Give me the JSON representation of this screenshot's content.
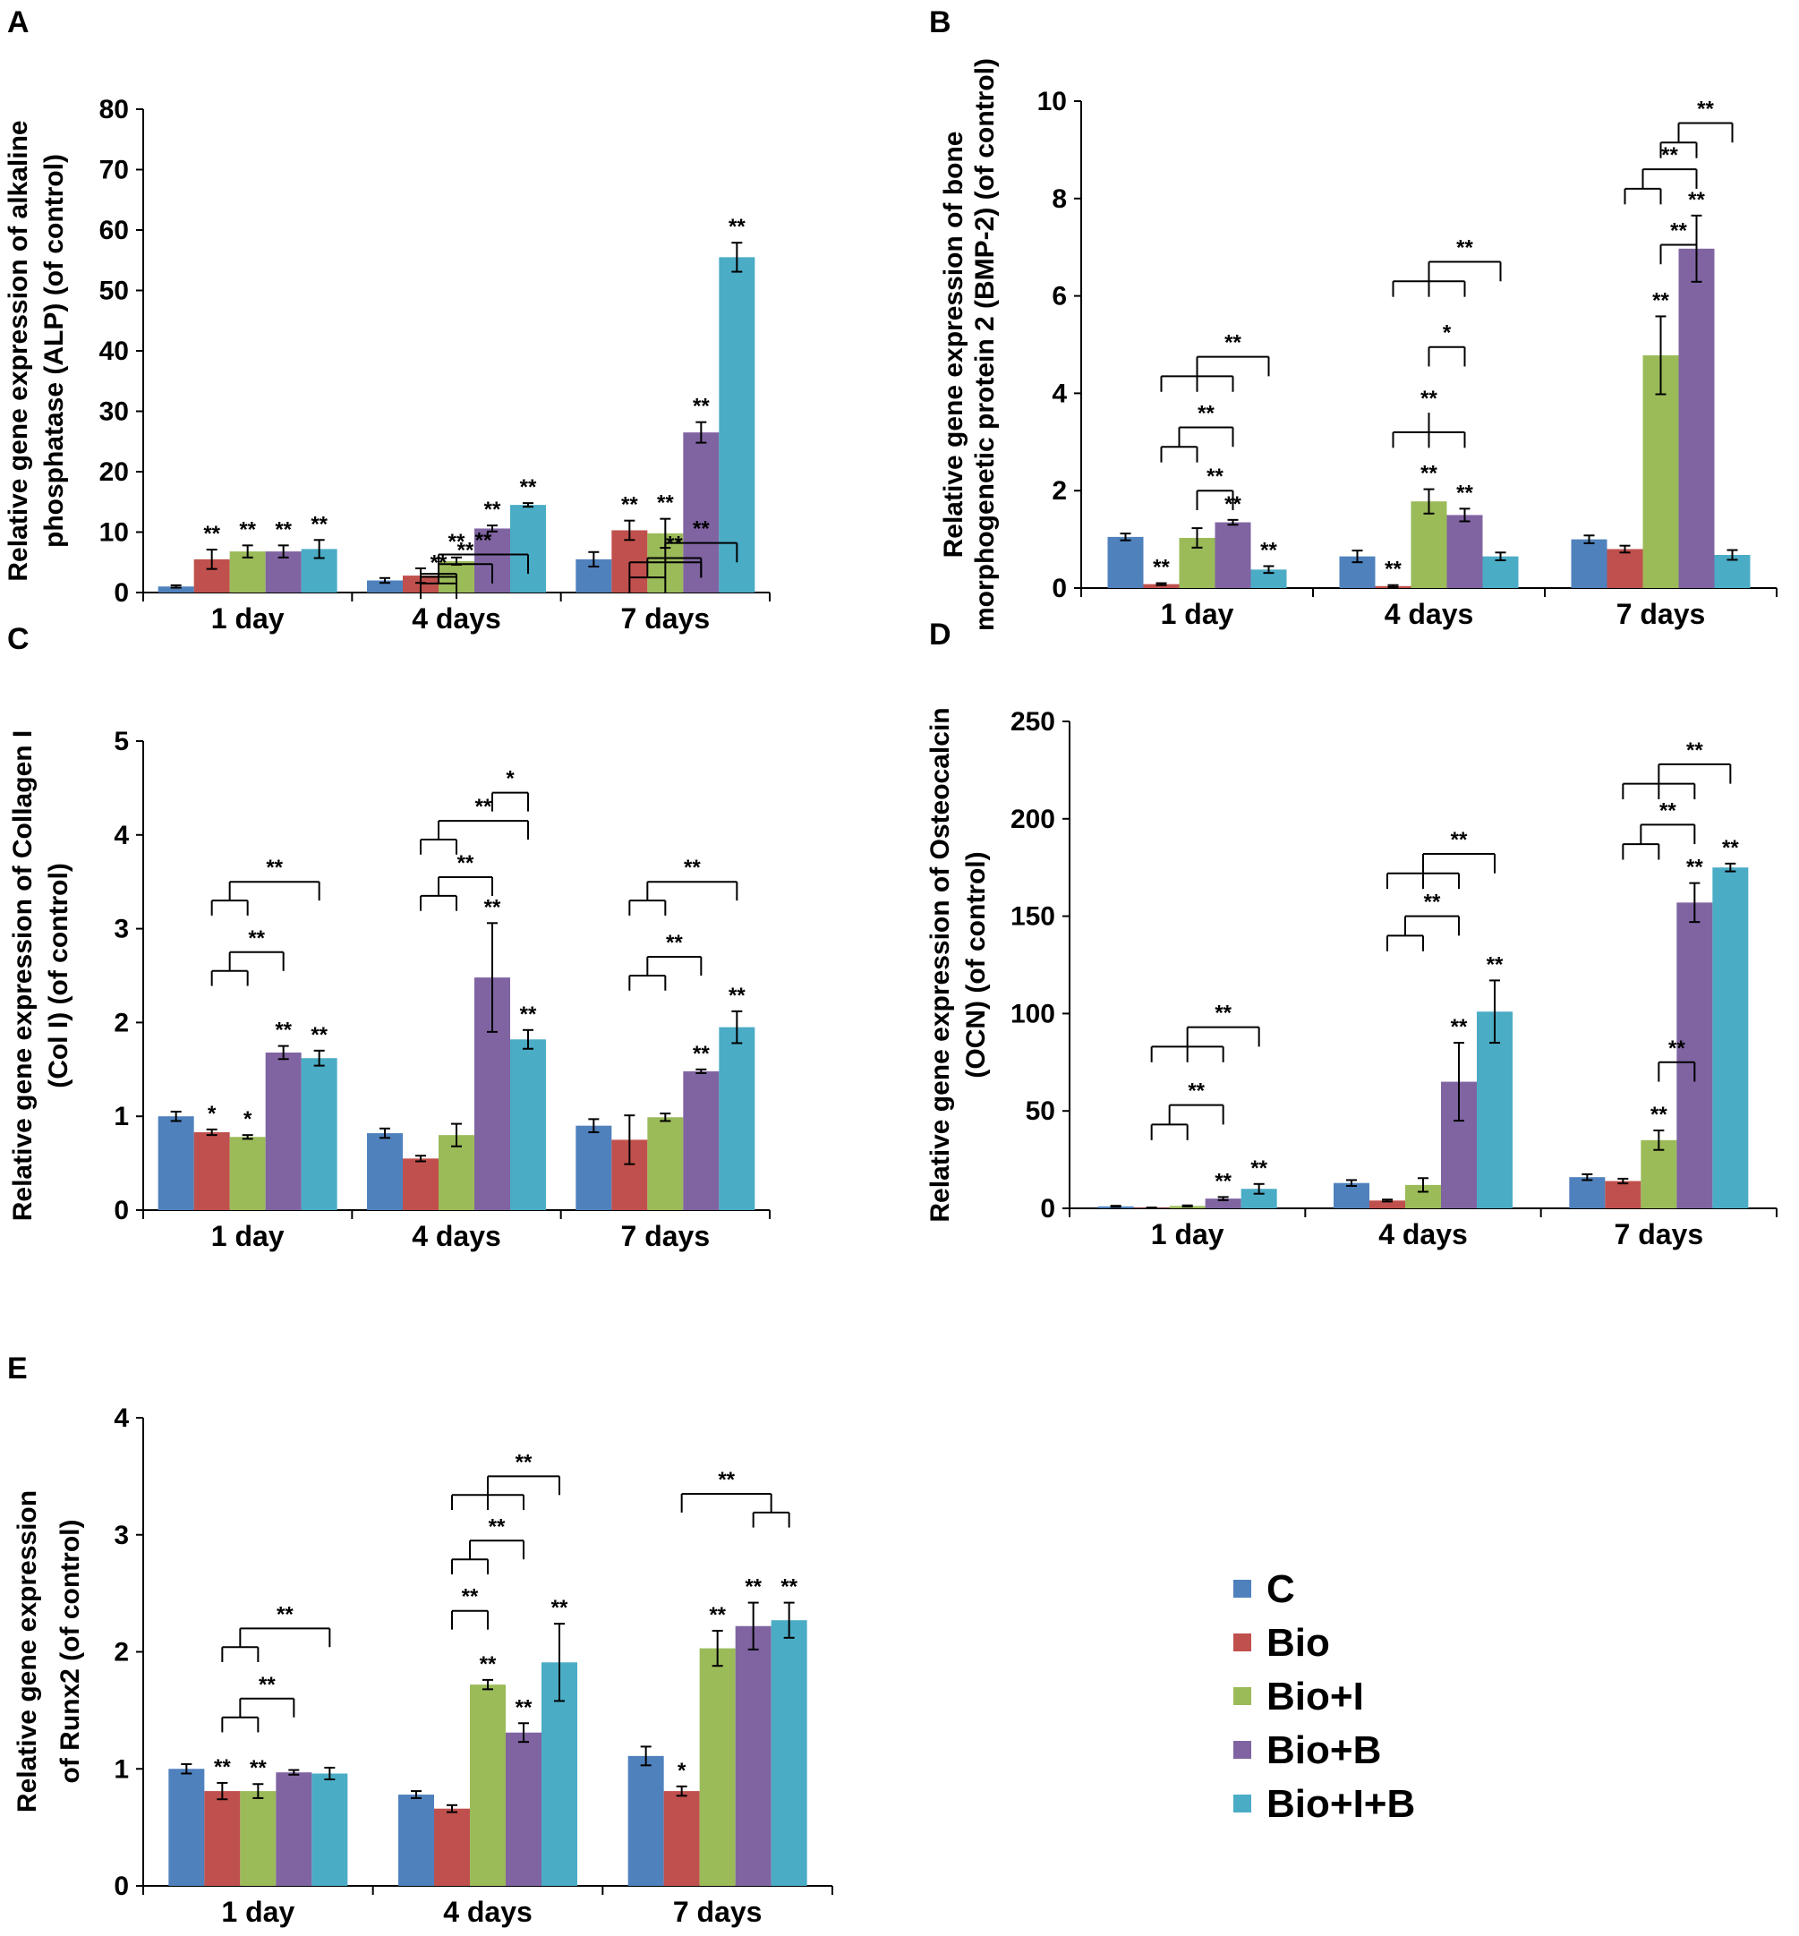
{
  "legend": {
    "items": [
      {
        "label": "C",
        "color": "#4F81BD"
      },
      {
        "label": "Bio",
        "color": "#C0504D"
      },
      {
        "label": "Bio+I",
        "color": "#9BBB59"
      },
      {
        "label": "Bio+B",
        "color": "#8064A2"
      },
      {
        "label": "Bio+I+B",
        "color": "#4BACC6"
      }
    ]
  },
  "chart_data": [
    {
      "panel": "A",
      "type": "bar",
      "ylabel": "Relative gene expression of alkaline phosphatase (ALP) (of control)",
      "ylabel_lines": [
        "Relative gene expression of alkaline",
        "phosphatase (ALP) (of control)"
      ],
      "ylim": [
        0,
        80
      ],
      "yticks": [
        "0",
        "10",
        "20",
        "30",
        "40",
        "50",
        "60",
        "70",
        "80"
      ],
      "categories": [
        "1 day",
        "4 days",
        "7 days"
      ],
      "series": [
        {
          "name": "C",
          "values": [
            1,
            2,
            5.5
          ],
          "errors": [
            0.2,
            0.4,
            1.2
          ],
          "stars": [
            "",
            "",
            ""
          ]
        },
        {
          "name": "Bio",
          "values": [
            5.5,
            2.8,
            10.3
          ],
          "errors": [
            1.6,
            1.2,
            1.6
          ],
          "stars": [
            "**",
            "",
            "**"
          ]
        },
        {
          "name": "Bio+I",
          "values": [
            6.8,
            5.2,
            9.8
          ],
          "errors": [
            1.0,
            0.6,
            2.4
          ],
          "stars": [
            "**",
            "**",
            "**"
          ]
        },
        {
          "name": "Bio+B",
          "values": [
            6.8,
            10.6,
            26.5
          ],
          "errors": [
            1.0,
            0.5,
            1.7
          ],
          "stars": [
            "**",
            "**",
            "**"
          ]
        },
        {
          "name": "Bio+I+B",
          "values": [
            7.2,
            14.5,
            55.5
          ],
          "errors": [
            1.5,
            0.3,
            2.4
          ],
          "stars": [
            "**",
            "**",
            "**"
          ]
        }
      ],
      "brackets": [
        {
          "cat": 1,
          "from": [
            1,
            2
          ],
          "to": 3,
          "level": 4.7,
          "label": "**"
        },
        {
          "cat": 1,
          "from": [
            1,
            2
          ],
          "to": 4,
          "level": 6.3,
          "label": "**"
        },
        {
          "cat": 2,
          "from": [
            1,
            2
          ],
          "to": 3,
          "level": 5.7,
          "label": "**"
        },
        {
          "cat": 2,
          "from": [
            1,
            2,
            3
          ],
          "to": 4,
          "level": 8.2,
          "label": "**"
        },
        {
          "cat": 1,
          "from": [
            1
          ],
          "to": 2,
          "level": 2.6,
          "label": "**"
        }
      ]
    },
    {
      "panel": "B",
      "type": "bar",
      "ylabel": "Relative gene expression of bone morphogenetic protein 2 (BMP-2) (of control)",
      "ylabel_lines": [
        "Relative gene expression of bone",
        "morphogenetic protein 2 (BMP-2) (of control)"
      ],
      "ylim": [
        0,
        10
      ],
      "yticks": [
        "0",
        "2",
        "4",
        "6",
        "8",
        "10"
      ],
      "categories": [
        "1 day",
        "4 days",
        "7 days"
      ],
      "series": [
        {
          "name": "C",
          "values": [
            1.05,
            0.65,
            1.0
          ],
          "errors": [
            0.07,
            0.12,
            0.08
          ],
          "stars": [
            "",
            "",
            ""
          ]
        },
        {
          "name": "Bio",
          "values": [
            0.08,
            0.04,
            0.8
          ],
          "errors": [
            0.02,
            0.02,
            0.07
          ],
          "stars": [
            "**",
            "**",
            ""
          ]
        },
        {
          "name": "Bio+I",
          "values": [
            1.03,
            1.78,
            4.78
          ],
          "errors": [
            0.2,
            0.25,
            0.8
          ],
          "stars": [
            "",
            "**",
            "**"
          ]
        },
        {
          "name": "Bio+B",
          "values": [
            1.35,
            1.5,
            6.97
          ],
          "errors": [
            0.05,
            0.13,
            0.68
          ],
          "stars": [
            "**",
            "**",
            "**"
          ]
        },
        {
          "name": "Bio+I+B",
          "values": [
            0.38,
            0.65,
            0.68
          ],
          "errors": [
            0.07,
            0.08,
            0.1
          ],
          "stars": [
            "**",
            "",
            ""
          ]
        }
      ],
      "brackets": [
        {
          "cat": 0,
          "from": [
            2
          ],
          "to": 3,
          "level": 2.0,
          "label": "**"
        },
        {
          "cat": 0,
          "from": [
            1,
            2
          ],
          "to": 3,
          "level": 3.3,
          "label": "**"
        },
        {
          "cat": 0,
          "from": [
            1,
            2,
            3
          ],
          "to": 4,
          "level": 4.75,
          "label": "**"
        },
        {
          "cat": 1,
          "from": [
            2
          ],
          "to": 3,
          "level": 4.95,
          "label": "*"
        },
        {
          "cat": 1,
          "from": [
            1,
            2,
            3
          ],
          "to": 4,
          "level": 6.7,
          "label": "**"
        },
        {
          "cat": 1,
          "from": [
            1,
            2,
            3
          ],
          "to": 2,
          "level": 3.6,
          "label": "**"
        },
        {
          "cat": 2,
          "from": [
            2
          ],
          "to": 3,
          "level": 7.05,
          "label": "**"
        },
        {
          "cat": 2,
          "from": [
            1,
            2
          ],
          "to": 3,
          "level": 8.6,
          "label": "**"
        },
        {
          "cat": 2,
          "from": [
            2,
            3
          ],
          "to": 4,
          "level": 9.55,
          "label": "**"
        }
      ]
    },
    {
      "panel": "C",
      "type": "bar",
      "ylabel": "Relative gene expression of Collagen I (Col I) (of control)",
      "ylabel_lines": [
        "Relative gene expression of Collagen I",
        "(Col I) (of control)"
      ],
      "ylim": [
        0,
        5
      ],
      "yticks": [
        "0",
        "1",
        "2",
        "3",
        "4",
        "5"
      ],
      "categories": [
        "1 day",
        "4 days",
        "7 days"
      ],
      "series": [
        {
          "name": "C",
          "values": [
            1.0,
            0.82,
            0.9
          ],
          "errors": [
            0.05,
            0.05,
            0.07
          ],
          "stars": [
            "",
            "",
            ""
          ]
        },
        {
          "name": "Bio",
          "values": [
            0.83,
            0.55,
            0.75
          ],
          "errors": [
            0.03,
            0.03,
            0.26
          ],
          "stars": [
            "*",
            "",
            ""
          ]
        },
        {
          "name": "Bio+I",
          "values": [
            0.78,
            0.8,
            0.99
          ],
          "errors": [
            0.02,
            0.12,
            0.04
          ],
          "stars": [
            "*",
            "",
            ""
          ]
        },
        {
          "name": "Bio+B",
          "values": [
            1.68,
            2.48,
            1.48
          ],
          "errors": [
            0.07,
            0.58,
            0.02
          ],
          "stars": [
            "**",
            "**",
            "**"
          ]
        },
        {
          "name": "Bio+I+B",
          "values": [
            1.62,
            1.82,
            1.95
          ],
          "errors": [
            0.08,
            0.1,
            0.17
          ],
          "stars": [
            "**",
            "**",
            "**"
          ]
        }
      ],
      "brackets": [
        {
          "cat": 0,
          "from": [
            1,
            2
          ],
          "to": 3,
          "level": 2.75,
          "label": "**"
        },
        {
          "cat": 0,
          "from": [
            1,
            2
          ],
          "to": 4,
          "level": 3.5,
          "label": "**"
        },
        {
          "cat": 1,
          "from": [
            1,
            2
          ],
          "to": 3,
          "level": 3.55,
          "label": "**"
        },
        {
          "cat": 1,
          "from": [
            1,
            2
          ],
          "to": 4,
          "level": 4.15,
          "label": "**"
        },
        {
          "cat": 1,
          "from": [
            3
          ],
          "to": 4,
          "level": 4.45,
          "label": "*"
        },
        {
          "cat": 2,
          "from": [
            1,
            2
          ],
          "to": 3,
          "level": 2.7,
          "label": "**"
        },
        {
          "cat": 2,
          "from": [
            1,
            2
          ],
          "to": 4,
          "level": 3.5,
          "label": "**"
        }
      ]
    },
    {
      "panel": "D",
      "type": "bar",
      "ylabel": "Relative gene expression of Osteocalcin (OCN) (of control)",
      "ylabel_lines": [
        "Relative gene expression of Osteocalcin",
        "(OCN) (of control)"
      ],
      "ylim": [
        0,
        250
      ],
      "yticks": [
        "0",
        "50",
        "100",
        "150",
        "200",
        "250"
      ],
      "categories": [
        "1 day",
        "4 days",
        "7 days"
      ],
      "series": [
        {
          "name": "C",
          "values": [
            1,
            13,
            16
          ],
          "errors": [
            0.3,
            1.5,
            1.5
          ],
          "stars": [
            "",
            "",
            ""
          ]
        },
        {
          "name": "Bio",
          "values": [
            0.3,
            4,
            14
          ],
          "errors": [
            0.1,
            0.5,
            1.2
          ],
          "stars": [
            "",
            "",
            ""
          ]
        },
        {
          "name": "Bio+I",
          "values": [
            1.2,
            12,
            35
          ],
          "errors": [
            0.3,
            3.5,
            5
          ],
          "stars": [
            "",
            "",
            "**"
          ]
        },
        {
          "name": "Bio+B",
          "values": [
            5,
            65,
            157
          ],
          "errors": [
            0.8,
            20,
            10
          ],
          "stars": [
            "**",
            "**",
            "**"
          ]
        },
        {
          "name": "Bio+I+B",
          "values": [
            10,
            101,
            175
          ],
          "errors": [
            2.5,
            16,
            2
          ],
          "stars": [
            "**",
            "**",
            "**"
          ]
        }
      ],
      "brackets": [
        {
          "cat": 0,
          "from": [
            1,
            2
          ],
          "to": 3,
          "level": 53,
          "label": "**"
        },
        {
          "cat": 0,
          "from": [
            1,
            2,
            3
          ],
          "to": 4,
          "level": 93,
          "label": "**"
        },
        {
          "cat": 1,
          "from": [
            1,
            2
          ],
          "to": 3,
          "level": 150,
          "label": "**"
        },
        {
          "cat": 1,
          "from": [
            1,
            2,
            3
          ],
          "to": 4,
          "level": 182,
          "label": "**"
        },
        {
          "cat": 2,
          "from": [
            2
          ],
          "to": 3,
          "level": 75,
          "label": "**"
        },
        {
          "cat": 2,
          "from": [
            1,
            2
          ],
          "to": 3,
          "level": 197,
          "label": "**"
        },
        {
          "cat": 2,
          "from": [
            1,
            2,
            3
          ],
          "to": 4,
          "level": 228,
          "label": "**"
        }
      ]
    },
    {
      "panel": "E",
      "type": "bar",
      "ylabel": "Relative gene expression of Runx2 (of control)",
      "ylabel_lines": [
        "Relative gene expression",
        "of Runx2 (of control)"
      ],
      "ylim": [
        0,
        4
      ],
      "yticks": [
        "0",
        "1",
        "2",
        "3",
        "4"
      ],
      "categories": [
        "1 day",
        "4 days",
        "7 days"
      ],
      "series": [
        {
          "name": "C",
          "values": [
            1.0,
            0.78,
            1.11
          ],
          "errors": [
            0.04,
            0.03,
            0.08
          ],
          "stars": [
            "",
            "",
            ""
          ]
        },
        {
          "name": "Bio",
          "values": [
            0.81,
            0.66,
            0.81
          ],
          "errors": [
            0.07,
            0.03,
            0.04
          ],
          "stars": [
            "**",
            "",
            "*"
          ]
        },
        {
          "name": "Bio+I",
          "values": [
            0.81,
            1.72,
            2.03
          ],
          "errors": [
            0.06,
            0.04,
            0.15
          ],
          "stars": [
            "**",
            "**",
            "**"
          ]
        },
        {
          "name": "Bio+B",
          "values": [
            0.97,
            1.31,
            2.22
          ],
          "errors": [
            0.02,
            0.08,
            0.2
          ],
          "stars": [
            "",
            "**",
            "**"
          ]
        },
        {
          "name": "Bio+I+B",
          "values": [
            0.96,
            1.91,
            2.27
          ],
          "errors": [
            0.05,
            0.33,
            0.15
          ],
          "stars": [
            "",
            "**",
            "**"
          ]
        }
      ],
      "brackets": [
        {
          "cat": 0,
          "from": [
            1,
            2
          ],
          "to": 3,
          "level": 1.6,
          "label": "**"
        },
        {
          "cat": 0,
          "from": [
            1,
            2
          ],
          "to": 4,
          "level": 2.2,
          "label": "**"
        },
        {
          "cat": 1,
          "from": [
            1
          ],
          "to": 2,
          "level": 2.35,
          "label": "**"
        },
        {
          "cat": 1,
          "from": [
            1,
            2
          ],
          "to": 3,
          "level": 2.95,
          "label": "**"
        },
        {
          "cat": 1,
          "from": [
            1,
            2,
            3
          ],
          "to": 4,
          "level": 3.5,
          "label": "**"
        },
        {
          "cat": 2,
          "from": [
            1
          ],
          "to": [
            3,
            4
          ],
          "level": 3.35,
          "label": "**"
        }
      ]
    }
  ]
}
